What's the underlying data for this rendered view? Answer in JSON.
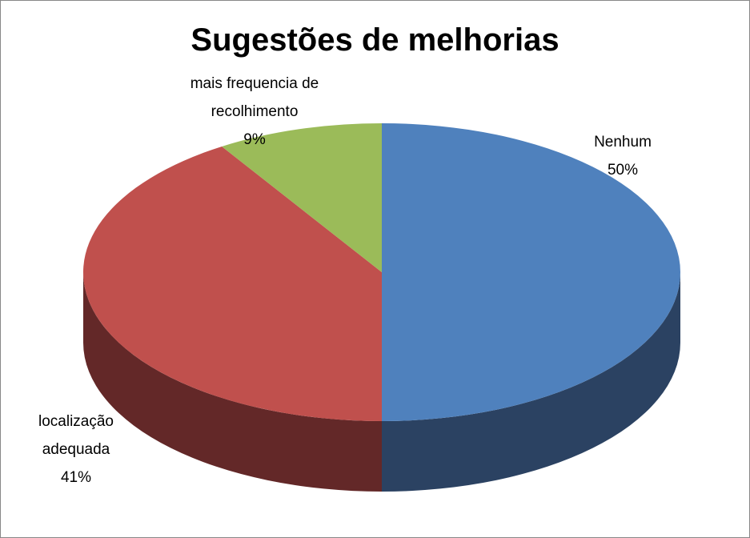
{
  "chart_data": {
    "type": "pie",
    "title": "Sugestões de melhorias",
    "categories": [
      "Nenhum",
      "localização adequada",
      "mais frequencia de recolhimento"
    ],
    "values": [
      50,
      41,
      9
    ],
    "value_labels": [
      "50%",
      "41%",
      "9%"
    ],
    "colors": [
      "#4f81bd",
      "#c0504d",
      "#9bbb59"
    ],
    "side_colors": [
      "#2b4262",
      "#632828",
      "#4e5e2c"
    ],
    "three_d": true
  }
}
